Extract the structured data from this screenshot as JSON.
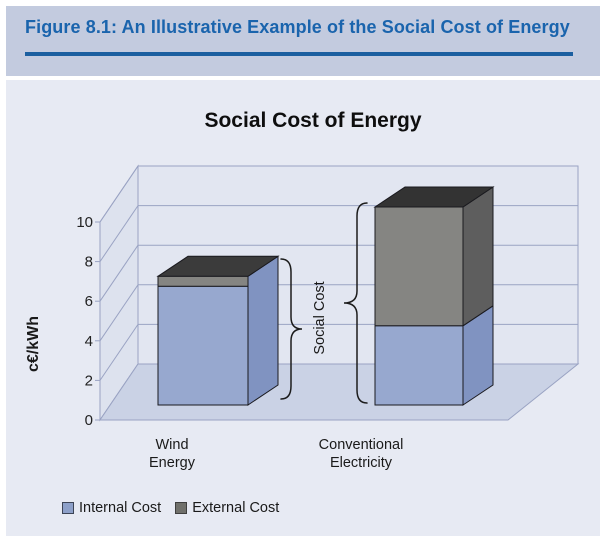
{
  "page": {
    "header": {
      "title": "Figure 8.1: An Illustrative Example of the Social Cost of Energy"
    }
  },
  "chart_data": {
    "type": "bar",
    "variant": "3d-stacked-column",
    "title": "Social Cost of Energy",
    "ylabel": "c€/kWh",
    "categories": [
      "Wind Energy",
      "Conventional Electricity"
    ],
    "category_label_lines": [
      [
        "Wind",
        "Energy"
      ],
      [
        "Conventional",
        "Electricity"
      ]
    ],
    "series": [
      {
        "name": "Internal Cost",
        "values": [
          6,
          4
        ]
      },
      {
        "name": "External Cost",
        "values": [
          0.5,
          6
        ]
      }
    ],
    "totals": [
      6.5,
      10
    ],
    "y_ticks": [
      0,
      2,
      4,
      6,
      8,
      10
    ],
    "ylim": [
      0,
      11
    ],
    "grid": true,
    "legend_position": "bottom",
    "annotation": "Social Cost"
  },
  "colors": {
    "header_bg": "#c3cbdf",
    "header_text": "#1a64ad",
    "header_rule": "#1b5fa0",
    "body_bg": "#e7eaf3",
    "wall_back": "#e2e6f1",
    "wall_left": "#dde2ee",
    "floor": "#cad2e5",
    "grid_line": "#9aa3c3",
    "internal_front": "#97a8cf",
    "internal_side": "#8093c1",
    "external_front": "#858582",
    "external_side": "#5e5e5e",
    "bar_top_wind": "#3b3b3b",
    "bar_top_conventional": "#333333",
    "outline": "#1a1a1f",
    "legend_internal": "#8da0c9",
    "legend_external": "#70706b",
    "text": "#1a1a1a"
  }
}
